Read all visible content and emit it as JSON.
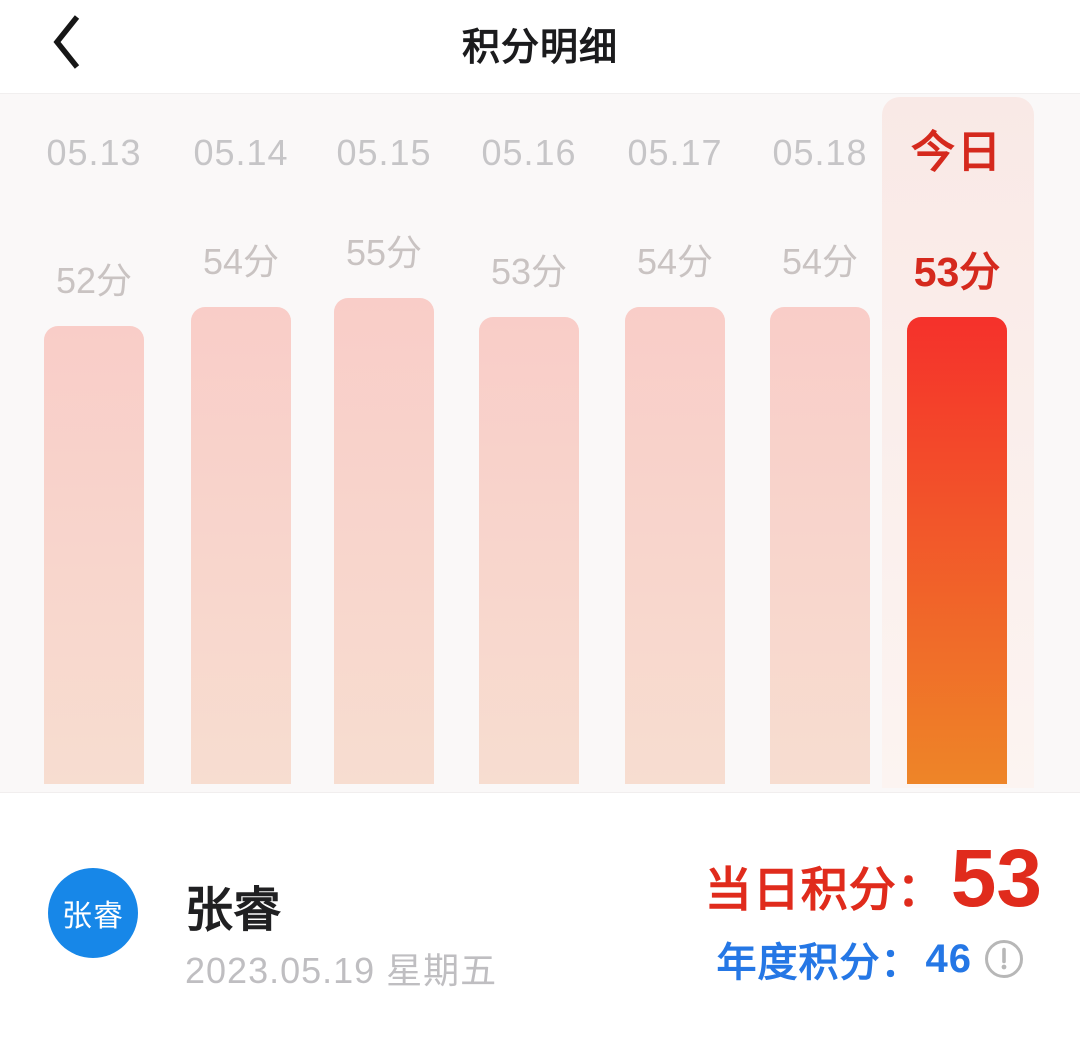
{
  "header": {
    "title": "积分明细",
    "title_color": "#1b1b1d"
  },
  "chart_data": {
    "type": "bar",
    "title": "",
    "categories": [
      "05.13",
      "05.14",
      "05.15",
      "05.16",
      "05.17",
      "05.18",
      "今日"
    ],
    "values": [
      52,
      54,
      55,
      53,
      54,
      54,
      53
    ],
    "value_suffix": "分",
    "value_labels": [
      "52分",
      "54分",
      "55分",
      "53分",
      "54分",
      "54分",
      "53分"
    ],
    "highlight_index": 6,
    "highlight_label": "今日",
    "ylim": [
      0,
      60
    ],
    "grid": false,
    "legend": false,
    "colors": {
      "background": "#faf8f8",
      "date_gray": "#c6c5c7",
      "score_gray": "#c9c3c2",
      "today_red": "#d5291d",
      "bar_gradient": [
        "#f9cdc8",
        "#f7ddd0"
      ],
      "today_bar_gradient": [
        "#f5312b",
        "#ee8528"
      ],
      "band_gradient": [
        "#f9e9e6",
        "#fcf4f1"
      ]
    }
  },
  "footer": {
    "avatar_text": "张睿",
    "user_name": "张睿",
    "date_line": "2023.05.19 星期五",
    "daily_label": "当日积分：",
    "daily_value": "53",
    "annual_label": "年度积分：",
    "annual_value": "46",
    "info_icon": "exclamation-circle",
    "colors": {
      "avatar_blue": "#1787e8",
      "daily_red": "#e02b1c",
      "annual_blue": "#2577e5",
      "info_gray": "#b7b7b7"
    }
  }
}
